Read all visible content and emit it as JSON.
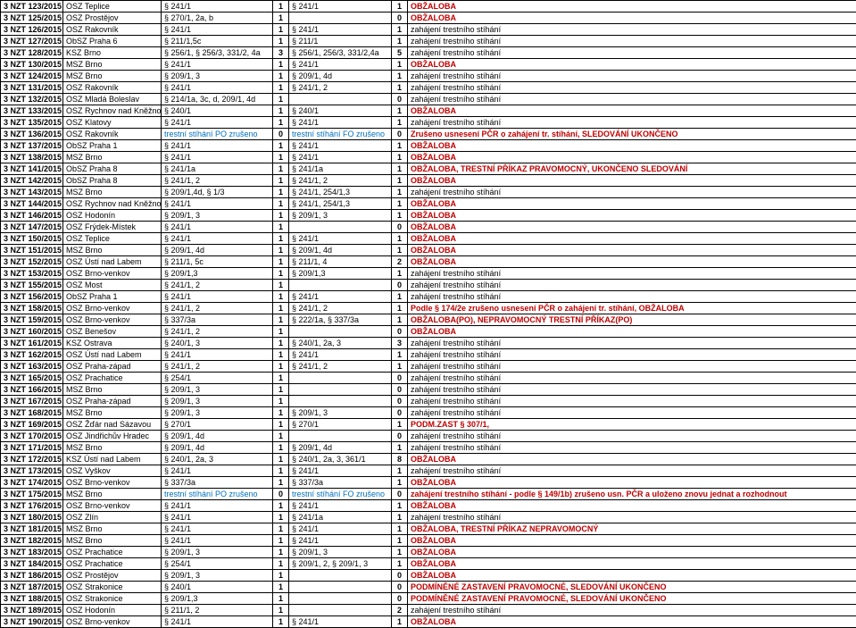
{
  "colors": {
    "red": "#c00000",
    "blue": "#0070c0",
    "black": "#000000"
  },
  "rows": [
    {
      "c0": "3 NZT 123/2015",
      "c1": "OSZ Teplice",
      "c2": "§ 241/1",
      "c3": "1",
      "c4": "§ 241/1",
      "c5": "1",
      "c6": "OBŽALOBA",
      "cls": "red"
    },
    {
      "c0": "3 NZT 125/2015",
      "c1": "OSZ Prostějov",
      "c2": "§ 270/1, 2a, b",
      "c3": "1",
      "c4": "",
      "c5": "0",
      "c6": "OBŽALOBA",
      "cls": "red"
    },
    {
      "c0": "3 NZT 126/2015",
      "c1": "OSZ Rakovník",
      "c2": "§ 241/1",
      "c3": "1",
      "c4": "§ 241/1",
      "c5": "1",
      "c6": "zahájení trestního stíhání"
    },
    {
      "c0": "3 NZT 127/2015",
      "c1": "ObSZ Praha 6",
      "c2": "§ 211/1,5c",
      "c3": "1",
      "c4": "§ 211/1",
      "c5": "1",
      "c6": "zahájení trestního stíhání"
    },
    {
      "c0": "3 NZT 128/2015",
      "c1": "KSZ Brno",
      "c2": "§ 256/1, § 256/3, 331/2, 4a",
      "c3": "3",
      "c4": "§ 256/1, 256/3, 331/2,4a",
      "c5": "5",
      "c6": "zahájení trestního stíhání"
    },
    {
      "c0": "3 NZT 130/2015",
      "c1": "MSZ Brno",
      "c2": "§ 241/1",
      "c3": "1",
      "c4": "§ 241/1",
      "c5": "1",
      "c6": "OBŽALOBA",
      "cls": "red"
    },
    {
      "c0": "3 NZT 124/2015",
      "c1": "MSZ Brno",
      "c2": "§ 209/1, 3",
      "c3": "1",
      "c4": "§ 209/1, 4d",
      "c5": "1",
      "c6": "zahájení trestního stíhání"
    },
    {
      "c0": "3 NZT 131/2015",
      "c1": "OSZ Rakovník",
      "c2": "§ 241/1",
      "c3": "1",
      "c4": "§ 241/1, 2",
      "c5": "1",
      "c6": "zahájení trestního stíhání"
    },
    {
      "c0": "3 NZT 132/2015",
      "c1": "OSZ Mladá Boleslav",
      "c2": "§ 214/1a, 3c, d, 209/1, 4d",
      "c3": "1",
      "c4": "",
      "c5": "0",
      "c6": "zahájení trestního stíhání"
    },
    {
      "c0": "3 NZT 133/2015",
      "c1": "OSZ Rychnov nad Kněžnou",
      "c2": "§ 240/1",
      "c3": "1",
      "c4": "§ 240/1",
      "c5": "1",
      "c6": "OBŽALOBA",
      "cls": "red"
    },
    {
      "c0": "3 NZT 135/2015",
      "c1": "OSZ Klatovy",
      "c2": "§ 241/1",
      "c3": "1",
      "c4": "§ 241/1",
      "c5": "1",
      "c6": "zahájení trestního stíhání"
    },
    {
      "c0": "3 NZT 136/2015",
      "c1": "OSZ Rakovník",
      "c2": "trestní stíhání PO zrušeno",
      "c2cls": "blue",
      "c3": "0",
      "c4": "trestní stíhání FO zrušeno",
      "c4cls": "blue",
      "c5": "0",
      "c6": "Zrušeno usnesení PČR o zahájení tr. stíhání, SLEDOVÁNÍ UKONČENO",
      "cls": "red"
    },
    {
      "c0": "3 NZT 137/2015",
      "c1": "ObSZ Praha 1",
      "c2": "§ 241/1",
      "c3": "1",
      "c4": "§ 241/1",
      "c5": "1",
      "c6": "OBŽALOBA",
      "cls": "red"
    },
    {
      "c0": "3 NZT 138/2015",
      "c1": "MSZ Brno",
      "c2": "§ 241/1",
      "c3": "1",
      "c4": "§ 241/1",
      "c5": "1",
      "c6": "OBŽALOBA",
      "cls": "red"
    },
    {
      "c0": "3 NZT 141/2015",
      "c1": "ObSZ Praha 8",
      "c2": "§ 241/1a",
      "c3": "1",
      "c4": "§ 241/1a",
      "c5": "1",
      "c6": "OBŽALOBA, TRESTNÍ PŘÍKAZ PRAVOMOCNÝ, UKONČENO SLEDOVÁNÍ",
      "cls": "red"
    },
    {
      "c0": "3 NZT 142/2015",
      "c1": "ObSZ Praha 8",
      "c2": "§ 241/1, 2",
      "c3": "1",
      "c4": "§ 241/1, 2",
      "c5": "1",
      "c6": "OBŽALOBA",
      "cls": "red"
    },
    {
      "c0": "3 NZT 143/2015",
      "c1": "MSZ Brno",
      "c2": "§ 209/1,4d, § 1/3",
      "c3": "1",
      "c4": "§ 241/1, 254/1,3",
      "c5": "1",
      "c6": "zahájení trestního stíhání"
    },
    {
      "c0": "3 NZT 144/2015",
      "c1": "OSZ Rychnov nad Kněžnou",
      "c2": "§ 241/1",
      "c3": "1",
      "c4": "§ 241/1, 254/1,3",
      "c5": "1",
      "c6": "OBŽALOBA",
      "cls": "red"
    },
    {
      "c0": "3 NZT 146/2015",
      "c1": "OSZ Hodonín",
      "c2": "§ 209/1, 3",
      "c3": "1",
      "c4": "§ 209/1, 3",
      "c5": "1",
      "c6": "OBŽALOBA",
      "cls": "red"
    },
    {
      "c0": "3 NZT 147/2015",
      "c1": "OSZ Frýdek-Místek",
      "c2": "§ 241/1",
      "c3": "1",
      "c4": "",
      "c5": "0",
      "c6": "OBŽALOBA",
      "cls": "red"
    },
    {
      "c0": "3 NZT 150/2015",
      "c1": "OSZ Teplice",
      "c2": "§ 241/1",
      "c3": "1",
      "c4": "§ 241/1",
      "c5": "1",
      "c6": "OBŽALOBA",
      "cls": "red"
    },
    {
      "c0": "3 NZT 151/2015",
      "c1": "MSZ Brno",
      "c2": "§ 209/1, 4d",
      "c3": "1",
      "c4": "§ 209/1, 4d",
      "c5": "1",
      "c6": "OBŽALOBA",
      "cls": "red"
    },
    {
      "c0": "3 NZT 152/2015",
      "c1": "OSZ Ústí nad Labem",
      "c2": "§ 211/1, 5c",
      "c3": "1",
      "c4": "§ 211/1, 4",
      "c5": "2",
      "c6": "OBŽALOBA",
      "cls": "red"
    },
    {
      "c0": "3 NZT 153/2015",
      "c1": "OSZ Brno-venkov",
      "c2": "§ 209/1,3",
      "c3": "1",
      "c4": "§ 209/1,3",
      "c5": "1",
      "c6": "zahájení trestního stíhání"
    },
    {
      "c0": "3 NZT 155/2015",
      "c1": "OSZ Most",
      "c2": "§ 241/1, 2",
      "c3": "1",
      "c4": "",
      "c5": "0",
      "c6": "zahájení trestního stíhání"
    },
    {
      "c0": "3 NZT 156/2015",
      "c1": "ObSZ Praha 1",
      "c2": "§ 241/1",
      "c3": "1",
      "c4": "§ 241/1",
      "c5": "1",
      "c6": "zahájení trestního stíhání"
    },
    {
      "c0": "3 NZT 158/2015",
      "c1": "OSZ Brno-venkov",
      "c2": "§ 241/1, 2",
      "c3": "1",
      "c4": "§ 241/1, 2",
      "c5": "1",
      "c6": "Podle § 174/2e zrušeno usnesení PČR o zahájení tr. stíhání, OBŽALOBA",
      "cls": "red"
    },
    {
      "c0": "3 NZT 159/2015",
      "c1": "OSZ Brno-venkov",
      "c2": "§ 337/3a",
      "c3": "1",
      "c4": "§ 222/1a, § 337/3a",
      "c5": "1",
      "c6": "OBŽALOBA(PO), NEPRAVOMOCNÝ TRESTNÍ PŘÍKAZ(PO)",
      "cls": "red"
    },
    {
      "c0": "3 NZT 160/2015",
      "c1": "OSZ Benešov",
      "c2": "§ 241/1, 2",
      "c3": "1",
      "c4": "",
      "c5": "0",
      "c6": "OBŽALOBA",
      "cls": "red"
    },
    {
      "c0": "3 NZT 161/2015",
      "c1": "KSZ Ostrava",
      "c2": "§ 240/1, 3",
      "c3": "1",
      "c4": "§ 240/1, 2a, 3",
      "c5": "3",
      "c6": "zahájení trestního stíhání"
    },
    {
      "c0": "3 NZT 162/2015",
      "c1": "OSZ Ústí nad Labem",
      "c2": "§ 241/1",
      "c3": "1",
      "c4": "§ 241/1",
      "c5": "1",
      "c6": "zahájení trestního stíhání"
    },
    {
      "c0": "3 NZT 163/2015",
      "c1": "OSZ Praha-západ",
      "c2": "§ 241/1, 2",
      "c3": "1",
      "c4": "§ 241/1, 2",
      "c5": "1",
      "c6": "zahájení trestního stíhání"
    },
    {
      "c0": "3 NZT 165/2015",
      "c1": "OSZ Prachatice",
      "c2": "§ 254/1",
      "c3": "1",
      "c4": "",
      "c5": "0",
      "c6": "zahájení trestního stíhání"
    },
    {
      "c0": "3 NZT 166/2015",
      "c1": "MSZ Brno",
      "c2": "§ 209/1, 3",
      "c3": "1",
      "c4": "",
      "c5": "0",
      "c6": "zahájení trestního stíhání"
    },
    {
      "c0": "3 NZT 167/2015",
      "c1": "OSZ Praha-západ",
      "c2": "§ 209/1, 3",
      "c3": "1",
      "c4": "",
      "c5": "0",
      "c6": "zahájení trestního stíhání"
    },
    {
      "c0": "3 NZT 168/2015",
      "c1": "MSZ Brno",
      "c2": "§ 209/1, 3",
      "c3": "1",
      "c4": "§ 209/1, 3",
      "c5": "0",
      "c6": "zahájení trestního stíhání"
    },
    {
      "c0": "3 NZT 169/2015",
      "c1": "OSZ Žďár nad Sázavou",
      "c2": "§ 270/1",
      "c3": "1",
      "c4": "§ 270/1",
      "c5": "1",
      "c6": "PODM.ZAST § 307/1,",
      "cls": "red"
    },
    {
      "c0": "3 NZT 170/2015",
      "c1": "OSZ Jindřichův Hradec",
      "c2": "§ 209/1, 4d",
      "c3": "1",
      "c4": "",
      "c5": "0",
      "c6": "zahájení trestního stíhání"
    },
    {
      "c0": "3 NZT 171/2015",
      "c1": "MSZ Brno",
      "c2": "§ 209/1, 4d",
      "c3": "1",
      "c4": "§ 209/1, 4d",
      "c5": "1",
      "c6": "zahájení trestního stíhání"
    },
    {
      "c0": "3 NZT 172/2015",
      "c1": "KSZ Ústí nad Labem",
      "c2": "§ 240/1, 2a, 3",
      "c3": "1",
      "c4": "§ 240/1, 2a, 3, 361/1",
      "c5": "8",
      "c6": "OBŽALOBA",
      "cls": "red"
    },
    {
      "c0": "3 NZT 173/2015",
      "c1": "OSZ Vyškov",
      "c2": "§ 241/1",
      "c3": "1",
      "c4": "§ 241/1",
      "c5": "1",
      "c6": "zahájení trestního stíhání"
    },
    {
      "c0": "3 NZT 174/2015",
      "c1": "OSZ Brno-venkov",
      "c2": "§ 337/3a",
      "c3": "1",
      "c4": "§ 337/3a",
      "c5": "1",
      "c6": "OBŽALOBA",
      "cls": "red"
    },
    {
      "c0": "3 NZT 175/2015",
      "c1": "MSZ Brno",
      "c2": "trestní stíhání PO zrušeno",
      "c2cls": "blue",
      "c3": "0",
      "c4": "trestní stíhání FO zrušeno",
      "c4cls": "blue",
      "c5": "0",
      "c6": "zahájení trestního stíhání - podle § 149/1b) zrušeno usn. PČR a uloženo znovu jednat a rozhodnout",
      "cls": "red"
    },
    {
      "c0": "3 NZT 176/2015",
      "c1": "OSZ Brno-venkov",
      "c2": "§ 241/1",
      "c3": "1",
      "c4": "§ 241/1",
      "c5": "1",
      "c6": "OBŽALOBA",
      "cls": "red"
    },
    {
      "c0": "3 NZT 180/2015",
      "c1": "OSZ Zlín",
      "c2": "§ 241/1",
      "c3": "1",
      "c4": "§ 241/1a",
      "c5": "1",
      "c6": "zahájení trestního stíhání"
    },
    {
      "c0": "3 NZT 181/2015",
      "c1": "MSZ Brno",
      "c2": "§ 241/1",
      "c3": "1",
      "c4": "§ 241/1",
      "c5": "1",
      "c6": "OBŽALOBA, TRESTNÍ PŘÍKAZ NEPRAVOMOCNÝ",
      "cls": "red"
    },
    {
      "c0": "3 NZT 182/2015",
      "c1": "MSZ Brno",
      "c2": "§ 241/1",
      "c3": "1",
      "c4": "§ 241/1",
      "c5": "1",
      "c6": "OBŽALOBA",
      "cls": "red"
    },
    {
      "c0": "3 NZT 183/2015",
      "c1": "OSZ Prachatice",
      "c2": "§ 209/1, 3",
      "c3": "1",
      "c4": "§ 209/1, 3",
      "c5": "1",
      "c6": "OBŽALOBA",
      "cls": "red"
    },
    {
      "c0": "3 NZT 184/2015",
      "c1": "OSZ Prachatice",
      "c2": "§ 254/1",
      "c3": "1",
      "c4": "§ 209/1, 2, § 209/1, 3",
      "c5": "1",
      "c6": "OBŽALOBA",
      "cls": "red"
    },
    {
      "c0": "3 NZT 186/2015",
      "c1": "OSZ Prostějov",
      "c2": "§ 209/1, 3",
      "c3": "1",
      "c4": "",
      "c5": "0",
      "c6": "OBŽALOBA",
      "cls": "red"
    },
    {
      "c0": "3 NZT 187/2015",
      "c1": "OSZ Strakonice",
      "c2": "§ 240/1",
      "c3": "1",
      "c4": "",
      "c5": "0",
      "c6": "PODMÍNĚNÉ ZASTAVENÍ PRAVOMOCNÉ, SLEDOVÁNÍ UKONČENO",
      "cls": "red"
    },
    {
      "c0": "3 NZT 188/2015",
      "c1": "OSZ Strakonice",
      "c2": "§ 209/1,3",
      "c3": "1",
      "c4": "",
      "c5": "0",
      "c6": "PODMÍNĚNÉ ZASTAVENÍ PRAVOMOCNÉ, SLEDOVÁNÍ UKONČENO",
      "cls": "red"
    },
    {
      "c0": "3 NZT 189/2015",
      "c1": "OSZ Hodonín",
      "c2": "§ 211/1, 2",
      "c3": "1",
      "c4": "",
      "c5": "2",
      "c6": "zahájení trestního stíhání"
    },
    {
      "c0": "3 NZT 190/2015",
      "c1": "OSZ Brno-venkov",
      "c2": "§ 241/1",
      "c3": "1",
      "c4": "§ 241/1",
      "c5": "1",
      "c6": "OBŽALOBA",
      "cls": "red"
    }
  ]
}
